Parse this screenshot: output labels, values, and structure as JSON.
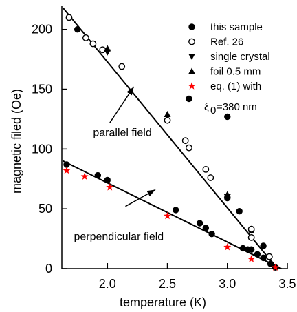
{
  "chart_data": {
    "type": "scatter",
    "xlabel": "temperature (K)",
    "ylabel": "magnetic filed (Oe)",
    "xlim": [
      1.62,
      3.5
    ],
    "ylim": [
      0,
      220
    ],
    "x_ticks": [
      "2.0",
      "2.5",
      "3.0",
      "3.5"
    ],
    "y_ticks": [
      "0",
      "50",
      "100",
      "150",
      "200"
    ],
    "legend": {
      "placement": "top-right",
      "entries": [
        {
          "label": "this sample",
          "marker": "filled-circle",
          "color": "#000000"
        },
        {
          "label": "Ref. 26",
          "marker": "open-circle",
          "color": "#000000"
        },
        {
          "label": "single crystal",
          "marker": "down-triangle",
          "color": "#000000"
        },
        {
          "label": "foil 0.5 mm",
          "marker": "up-triangle",
          "color": "#000000"
        },
        {
          "label": "eq. (1) with",
          "marker": "star",
          "color": "#ff0000"
        }
      ],
      "extra_line": {
        "xi": "ξ",
        "sub": "0",
        "value": "=380 nm"
      }
    },
    "annotations": [
      {
        "text": "parallel field",
        "arrow_from": [
          2.02,
          122
        ],
        "arrow_to": [
          2.22,
          152
        ],
        "text_at": [
          1.88,
          111
        ]
      },
      {
        "text": "perpendicular field",
        "arrow_from": [
          2.15,
          52
        ],
        "arrow_to": [
          2.4,
          66
        ],
        "text_at": [
          1.72,
          24
        ]
      }
    ],
    "fit_lines": [
      {
        "name": "parallel",
        "x": [
          1.63,
          3.4
        ],
        "y": [
          218,
          2
        ]
      },
      {
        "name": "perpendicular",
        "x": [
          1.63,
          3.45
        ],
        "y": [
          90,
          0
        ]
      }
    ],
    "series": [
      {
        "name": "this sample",
        "marker": "filled-circle",
        "color": "#000000",
        "x": [
          1.66,
          1.75,
          1.92,
          2.0,
          2.57,
          2.77,
          2.82,
          2.87,
          2.68,
          3.13,
          3.17,
          3.2,
          3.25,
          3.3,
          3.36,
          3.4,
          3.2,
          3.3,
          3.0,
          3.1,
          3.0
        ],
        "y": [
          87,
          200,
          78,
          74,
          49,
          38,
          34,
          29,
          142,
          17,
          16,
          16,
          12,
          9,
          4,
          1,
          32,
          19,
          59,
          48,
          127
        ]
      },
      {
        "name": "Ref. 26",
        "marker": "open-circle",
        "color": "#000000",
        "x": [
          1.68,
          1.82,
          1.88,
          1.96,
          2.12,
          2.5,
          2.65,
          2.68,
          2.82,
          2.86,
          3.2,
          3.35,
          3.2
        ],
        "y": [
          210,
          193,
          188,
          183,
          169,
          124,
          107,
          101,
          83,
          76,
          33,
          10,
          26
        ]
      },
      {
        "name": "single crystal",
        "marker": "down-triangle",
        "color": "#000000",
        "x": [
          2.0,
          3.0
        ],
        "y": [
          181,
          60
        ]
      },
      {
        "name": "foil 0.5 mm",
        "marker": "up-triangle",
        "color": "#000000",
        "x": [
          2.0,
          2.5,
          3.0
        ],
        "y": [
          184,
          129,
          62
        ]
      },
      {
        "name": "eq. (1) with",
        "marker": "star",
        "color": "#ff0000",
        "x": [
          1.66,
          1.81,
          2.02,
          2.5,
          3.0,
          3.2,
          3.4
        ],
        "y": [
          82,
          77,
          68,
          44,
          18,
          8,
          1
        ]
      }
    ]
  }
}
